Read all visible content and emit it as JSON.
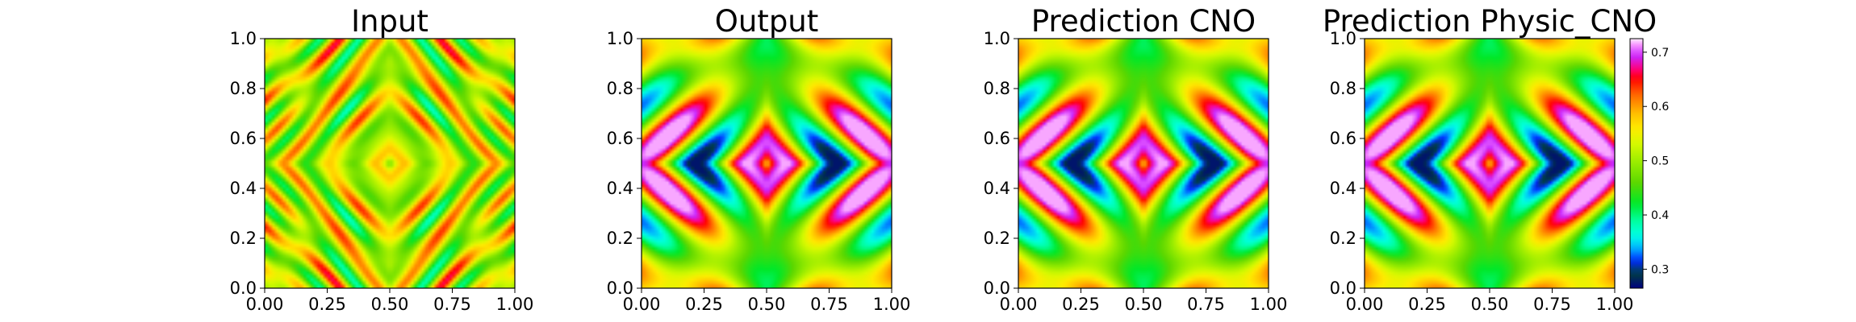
{
  "chart_data": [
    {
      "type": "heatmap",
      "title": "Input",
      "xlim": [
        0,
        1
      ],
      "ylim": [
        0,
        1
      ],
      "x_ticks": [
        "0.00",
        "0.25",
        "0.50",
        "0.75",
        "1.00"
      ],
      "y_ticks": [
        "0.0",
        "0.2",
        "0.4",
        "0.6",
        "0.8",
        "1.0"
      ],
      "grid": false,
      "field": "Input",
      "colormap": "gist_ncar",
      "value_range": [
        0.26,
        0.73
      ]
    },
    {
      "type": "heatmap",
      "title": "Output",
      "xlim": [
        0,
        1
      ],
      "ylim": [
        0,
        1
      ],
      "x_ticks": [
        "0.00",
        "0.25",
        "0.50",
        "0.75",
        "1.00"
      ],
      "y_ticks": [
        "0.0",
        "0.2",
        "0.4",
        "0.6",
        "0.8",
        "1.0"
      ],
      "grid": false,
      "field": "Output",
      "colormap": "gist_ncar",
      "value_range": [
        0.26,
        0.73
      ]
    },
    {
      "type": "heatmap",
      "title": "Prediction CNO",
      "xlim": [
        0,
        1
      ],
      "ylim": [
        0,
        1
      ],
      "x_ticks": [
        "0.00",
        "0.25",
        "0.50",
        "0.75",
        "1.00"
      ],
      "y_ticks": [
        "0.0",
        "0.2",
        "0.4",
        "0.6",
        "0.8",
        "1.0"
      ],
      "grid": false,
      "field": "Output",
      "colormap": "gist_ncar",
      "value_range": [
        0.26,
        0.73
      ]
    },
    {
      "type": "heatmap",
      "title": "Prediction Physic_CNO",
      "xlim": [
        0,
        1
      ],
      "ylim": [
        0,
        1
      ],
      "x_ticks": [
        "0.00",
        "0.25",
        "0.50",
        "0.75",
        "1.00"
      ],
      "y_ticks": [
        "0.0",
        "0.2",
        "0.4",
        "0.6",
        "0.8",
        "1.0"
      ],
      "grid": false,
      "field": "Output",
      "colormap": "gist_ncar",
      "value_range": [
        0.26,
        0.73
      ],
      "colorbar": {
        "ticks": [
          "0.3",
          "0.4",
          "0.5",
          "0.6",
          "0.7"
        ],
        "tick_values": [
          0.3,
          0.4,
          0.5,
          0.6,
          0.7
        ],
        "range": [
          0.265,
          0.725
        ],
        "placement": "right"
      }
    }
  ],
  "colors": {
    "axis": "#000000",
    "background": "#ffffff"
  }
}
